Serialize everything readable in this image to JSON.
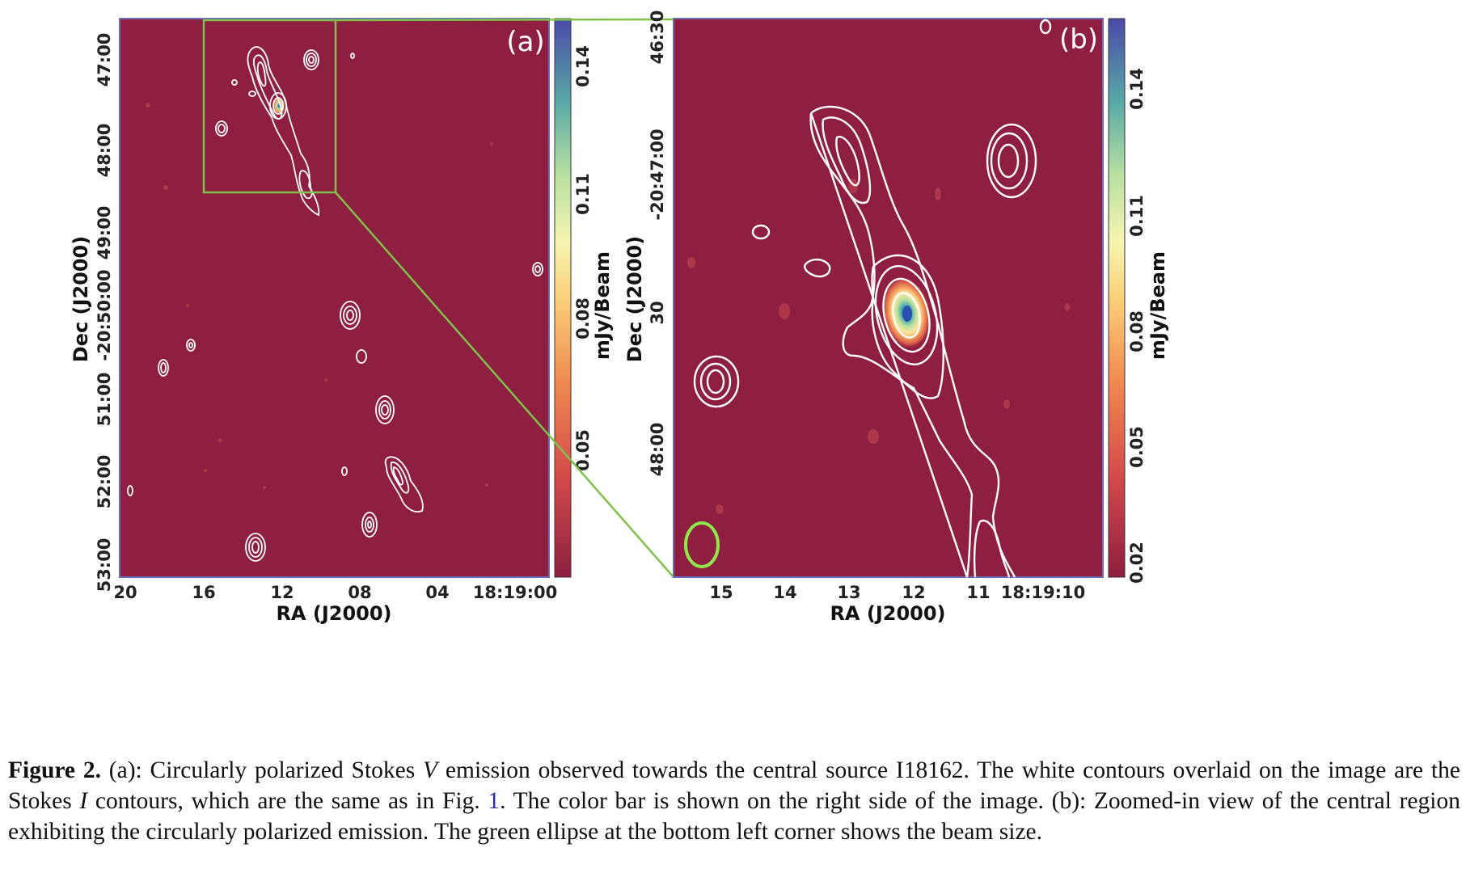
{
  "panel_a": {
    "label": "(a)",
    "ra_ticks": [
      "20",
      "16",
      "12",
      "08",
      "04",
      "18:19:00"
    ],
    "dec_ticks": [
      "47:00",
      "48:00",
      "49:00",
      "-20:50:00",
      "51:00",
      "52:00",
      "53:00"
    ],
    "xlabel": "RA (J2000)",
    "ylabel": "Dec (J2000)",
    "colorbar": {
      "ticks": [
        "0.14",
        "0.11",
        "0.08",
        "0.05"
      ],
      "label": "mJy/Beam"
    }
  },
  "panel_b": {
    "label": "(b)",
    "ra_ticks": [
      "15",
      "14",
      "13",
      "12",
      "11",
      "18:19:10"
    ],
    "dec_ticks": [
      "46:30",
      "-20:47:00",
      "30",
      "48:00"
    ],
    "xlabel": "RA (J2000)",
    "ylabel": "Dec (J2000)",
    "colorbar": {
      "ticks": [
        "0.14",
        "0.11",
        "0.08",
        "0.05",
        "0.02"
      ],
      "label": "mJy/Beam"
    }
  },
  "colors": {
    "background": "#8e1f40",
    "contour": "#ffffff",
    "zoom_box": "#7ec24a",
    "beam": "#8ee84a"
  },
  "caption": {
    "figure_label": "Figure 2.",
    "part1": " (a): Circularly polarized Stokes ",
    "var_v": "V",
    "part2": " emission observed towards the central source I18162. The white contours overlaid on the image are the Stokes ",
    "var_i": "I",
    "part3": " contours, which are the same as in Fig. ",
    "fig_ref": "1",
    "part4": ". The color bar is shown on the right side of the image. (b): Zoomed-in view of the central region exhibiting the circularly polarized emission. The green ellipse at the bottom left corner shows the beam size."
  }
}
